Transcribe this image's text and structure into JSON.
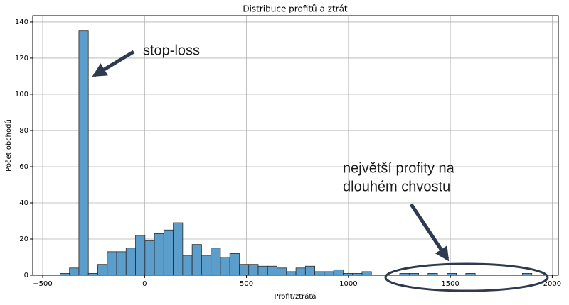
{
  "chart_data": {
    "type": "histogram",
    "title": "Distribuce profitů a ztrát",
    "xlabel": "Profit/ztráta",
    "ylabel": "Počet obchodů",
    "bins": [
      -415,
      -368.7,
      -322.4,
      -276.1,
      -229.8,
      -183.5,
      -137.2,
      -90.9,
      -44.6,
      1.7,
      48,
      94.3,
      140.6,
      186.9,
      233.2,
      279.5,
      325.8,
      372.1,
      418.4,
      464.7,
      511,
      557.3,
      603.6,
      649.9,
      696.2,
      742.5,
      788.8,
      835.1,
      881.4,
      927.7,
      974,
      1020.3,
      1066.6,
      1112.9,
      1159.2,
      1205.5,
      1251.8,
      1298.1,
      1344.4,
      1390.7,
      1437,
      1483.3,
      1529.6,
      1575.9,
      1622.2,
      1668.5,
      1714.8,
      1761.1,
      1807.4,
      1853.7,
      1900
    ],
    "values": [
      1,
      4,
      135,
      1,
      6,
      13,
      13,
      15,
      22,
      19,
      23,
      25,
      29,
      11,
      17,
      11,
      15,
      10,
      12,
      6,
      6,
      5,
      5,
      4,
      2,
      4,
      5,
      2,
      2,
      3,
      1,
      1,
      2,
      0,
      0,
      0,
      1,
      1,
      0,
      1,
      0,
      1,
      0,
      1,
      0,
      0,
      0,
      0,
      0,
      1
    ],
    "color": "#5b9dcb",
    "edgecolor": "#2b2b2b",
    "xlim": [
      -549,
      2030
    ],
    "ylim": [
      0,
      143.5
    ],
    "xticks": [
      {
        "value": -500,
        "label": "−500"
      },
      0,
      500,
      1000,
      1500,
      2000
    ],
    "yticks": [
      0,
      20,
      40,
      60,
      80,
      100,
      120,
      140
    ],
    "grid": true,
    "annotations": [
      "stop-loss",
      "největší profity na",
      "dlouhém chvostu"
    ]
  }
}
